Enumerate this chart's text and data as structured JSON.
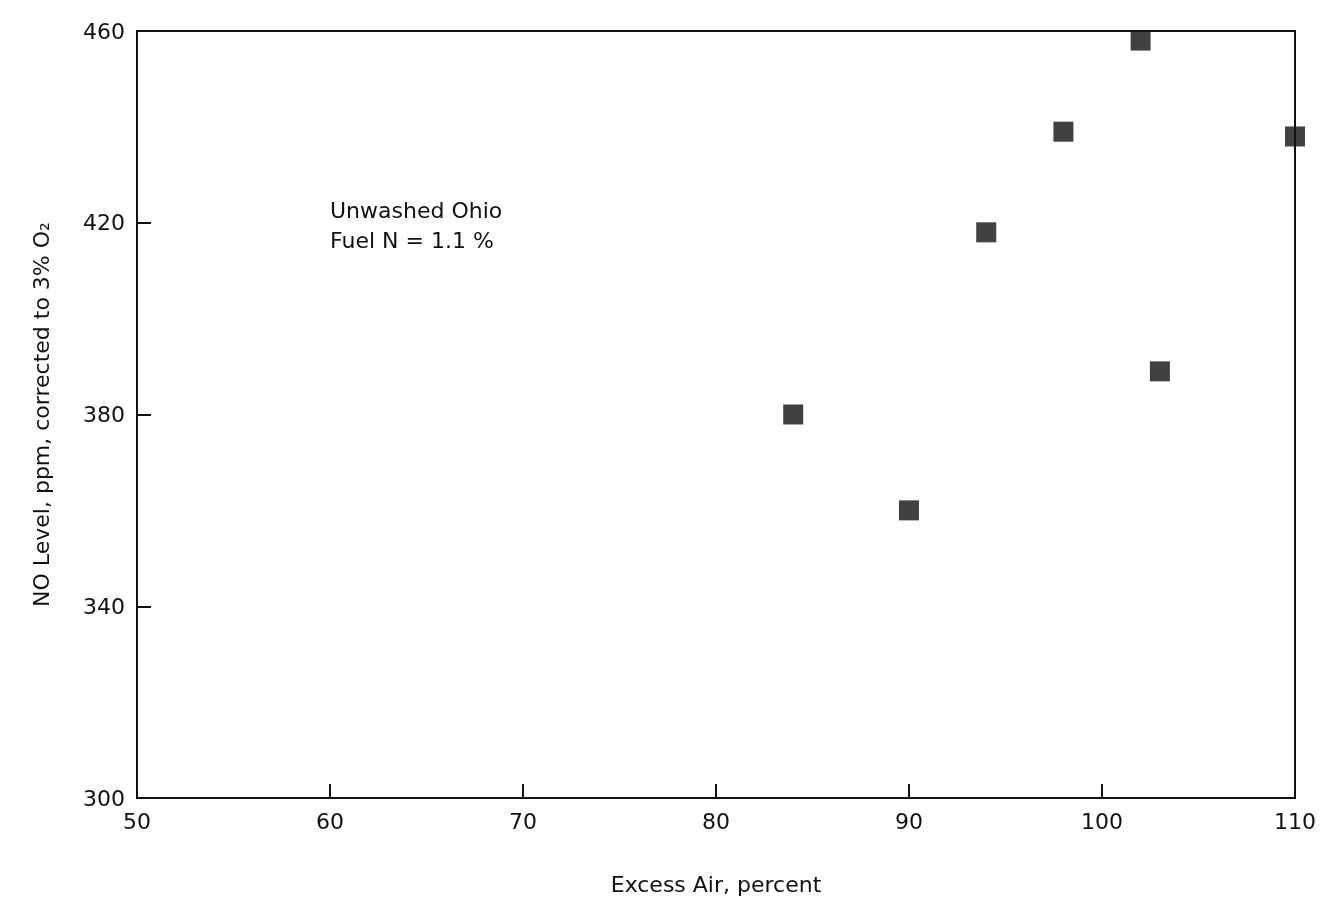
{
  "chart_data": {
    "type": "scatter",
    "xlabel": "Excess Air, percent",
    "ylabel": "NO Level, ppm, corrected to 3% O₂",
    "annotations": [
      "Unwashed Ohio\nFuel N = 1.1 %"
    ],
    "x": [
      84,
      90,
      94,
      98,
      102,
      103,
      110
    ],
    "values": [
      380,
      360,
      418,
      439,
      458,
      389,
      438
    ],
    "color": "#111111",
    "marker": "square",
    "xlim": [
      50,
      110
    ],
    "xticks": [
      50,
      60,
      70,
      80,
      90,
      100,
      110
    ],
    "ylim": [
      300,
      460
    ],
    "yticks": [
      300,
      340,
      380,
      420,
      460
    ],
    "grid": false
  }
}
